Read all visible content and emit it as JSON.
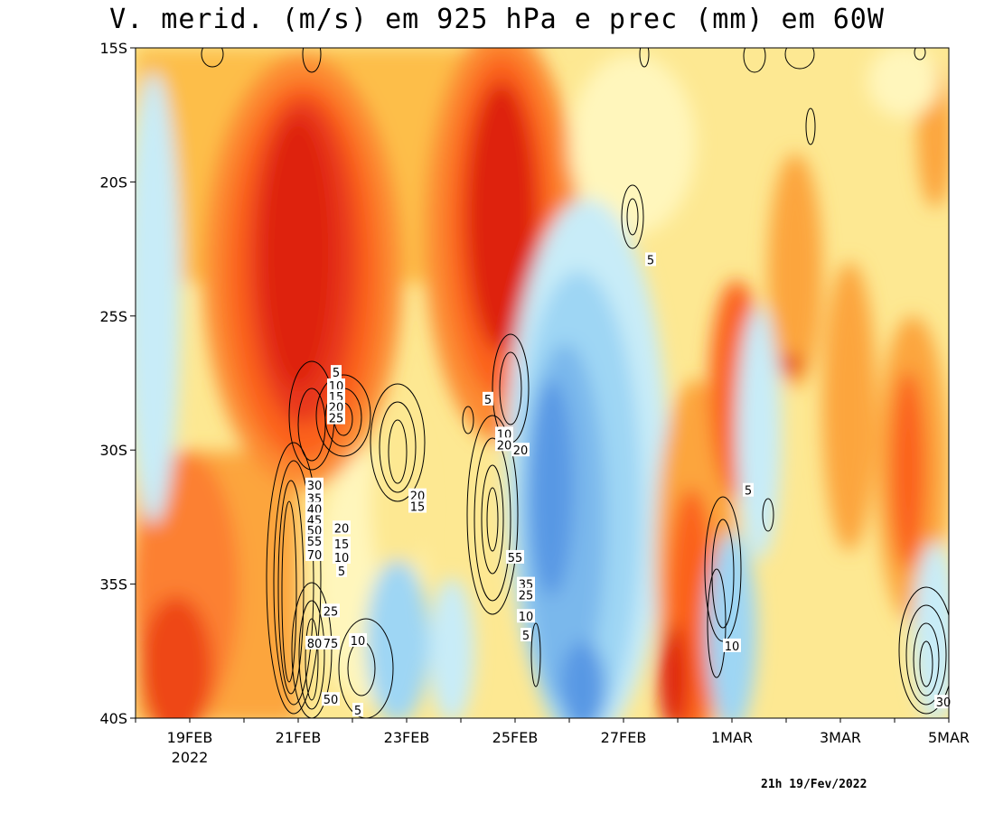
{
  "title": "V. merid. (m/s) em 925 hPa e prec (mm) em 60W",
  "timestamp": "21h 19/Fev/2022",
  "chart_data": {
    "type": "heatmap",
    "title": "V. merid. (m/s) em 925 hPa e prec (mm) em 60W",
    "xlabel": "",
    "ylabel": "",
    "x_tick_labels": [
      "19FEB",
      "21FEB",
      "23FEB",
      "25FEB",
      "27FEB",
      "1MAR",
      "3MAR",
      "5MAR"
    ],
    "x_tick_sublabel": "2022",
    "x_range": [
      "2022-02-18",
      "2022-03-05"
    ],
    "y_tick_labels": [
      "15S",
      "20S",
      "25S",
      "30S",
      "35S",
      "40S"
    ],
    "y_range_deg_south": [
      15,
      40
    ],
    "contour_labels": [
      {
        "text": "5",
        "date": "2022-02-21.7",
        "lat": 27.1
      },
      {
        "text": "10",
        "date": "2022-02-21.7",
        "lat": 27.6
      },
      {
        "text": "15",
        "date": "2022-02-21.7",
        "lat": 28.0
      },
      {
        "text": "20",
        "date": "2022-02-21.7",
        "lat": 28.4
      },
      {
        "text": "25",
        "date": "2022-02-21.7",
        "lat": 28.8
      },
      {
        "text": "30",
        "date": "2022-02-21.3",
        "lat": 31.3
      },
      {
        "text": "35",
        "date": "2022-02-21.3",
        "lat": 31.8
      },
      {
        "text": "40",
        "date": "2022-02-21.3",
        "lat": 32.2
      },
      {
        "text": "45",
        "date": "2022-02-21.3",
        "lat": 32.6
      },
      {
        "text": "50",
        "date": "2022-02-21.3",
        "lat": 33.0
      },
      {
        "text": "55",
        "date": "2022-02-21.3",
        "lat": 33.4
      },
      {
        "text": "70",
        "date": "2022-02-21.3",
        "lat": 33.9
      },
      {
        "text": "20",
        "date": "2022-02-21.8",
        "lat": 32.9
      },
      {
        "text": "15",
        "date": "2022-02-21.8",
        "lat": 33.5
      },
      {
        "text": "10",
        "date": "2022-02-21.8",
        "lat": 34.0
      },
      {
        "text": "5",
        "date": "2022-02-21.8",
        "lat": 34.5
      },
      {
        "text": "25",
        "date": "2022-02-21.6",
        "lat": 36.0
      },
      {
        "text": "80",
        "date": "2022-02-21.3",
        "lat": 37.2
      },
      {
        "text": "75",
        "date": "2022-02-21.6",
        "lat": 37.2
      },
      {
        "text": "50",
        "date": "2022-02-21.6",
        "lat": 39.3
      },
      {
        "text": "10",
        "date": "2022-02-22.1",
        "lat": 37.1
      },
      {
        "text": "5",
        "date": "2022-02-22.1",
        "lat": 39.7
      },
      {
        "text": "20",
        "date": "2022-02-23.2",
        "lat": 31.7
      },
      {
        "text": "15",
        "date": "2022-02-23.2",
        "lat": 32.1
      },
      {
        "text": "5",
        "date": "2022-02-24.5",
        "lat": 28.1
      },
      {
        "text": "10",
        "date": "2022-02-24.8",
        "lat": 29.4
      },
      {
        "text": "20",
        "date": "2022-02-24.8",
        "lat": 29.8
      },
      {
        "text": "20",
        "date": "2022-02-25.1",
        "lat": 30.0
      },
      {
        "text": "55",
        "date": "2022-02-25.0",
        "lat": 34.0
      },
      {
        "text": "35",
        "date": "2022-02-25.2",
        "lat": 35.0
      },
      {
        "text": "25",
        "date": "2022-02-25.2",
        "lat": 35.4
      },
      {
        "text": "10",
        "date": "2022-02-25.2",
        "lat": 36.2
      },
      {
        "text": "5",
        "date": "2022-02-25.2",
        "lat": 36.9
      },
      {
        "text": "5",
        "date": "2022-02-27.5",
        "lat": 22.9
      },
      {
        "text": "5",
        "date": "2022-03-01.3",
        "lat": 31.5
      },
      {
        "text": "10",
        "date": "2022-03-01.0",
        "lat": 37.3
      },
      {
        "text": "30",
        "date": "2022-03-04.9",
        "lat": 39.4
      }
    ]
  }
}
